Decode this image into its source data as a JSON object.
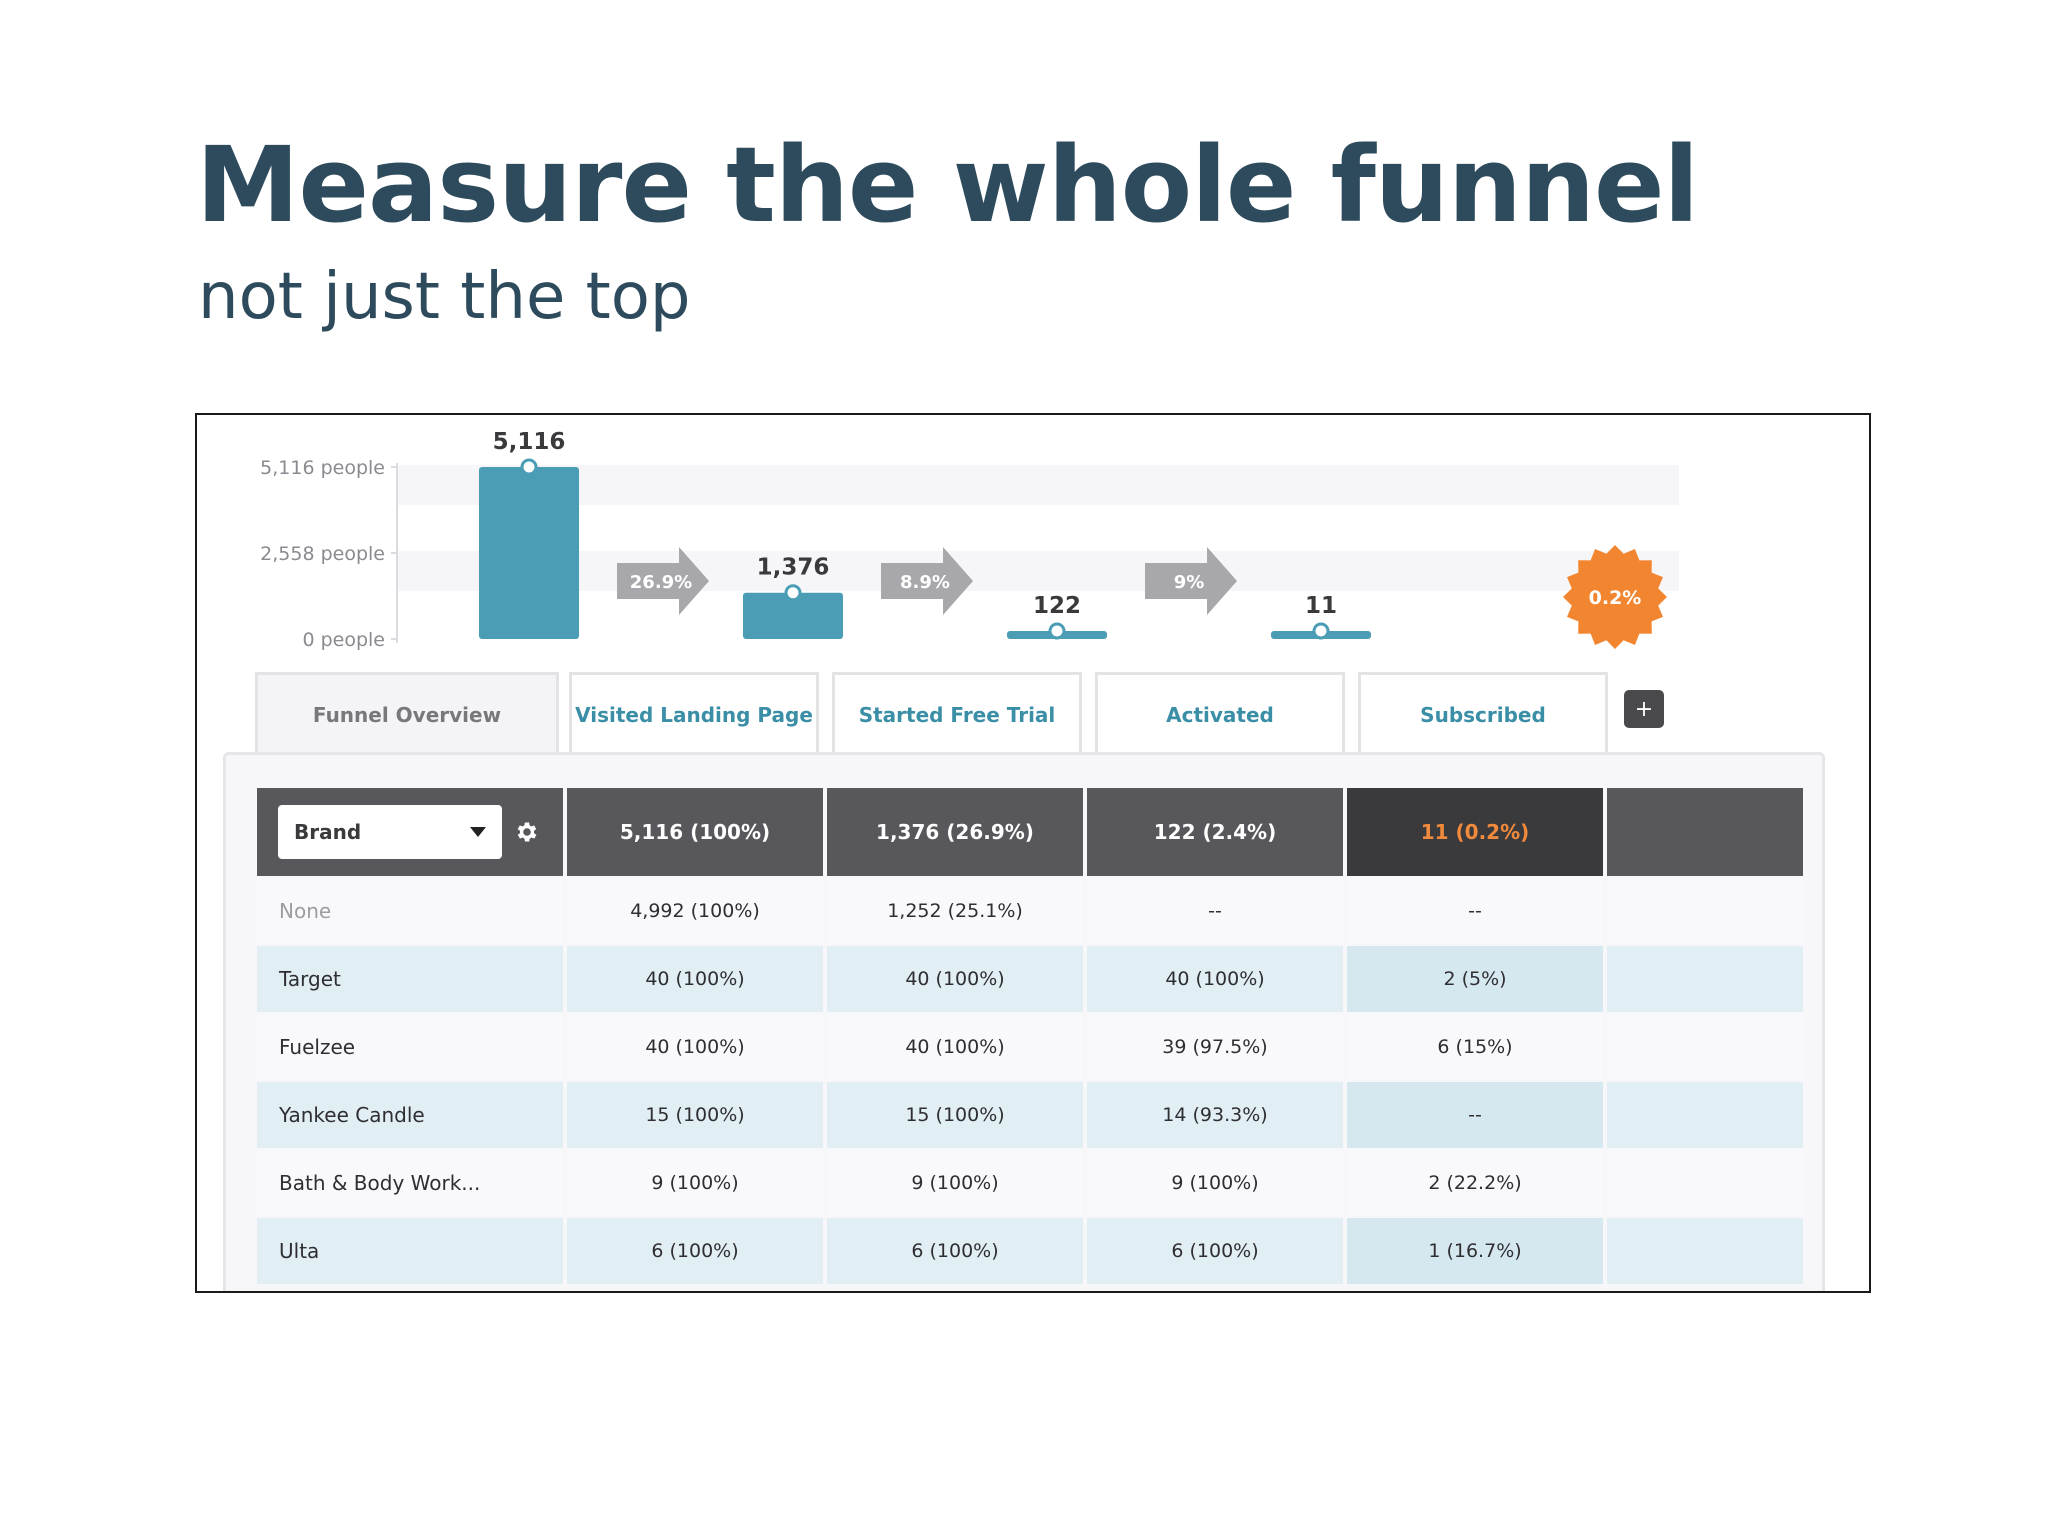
{
  "title": "Measure the whole funnel",
  "subtitle": "not just the top",
  "colors": {
    "title": "#2d4b5c",
    "bar": "#4a9db5",
    "arrow": "#a8a8ac",
    "badge": "#f2852f",
    "header": "#58585c",
    "header_dark": "#3a3a3d",
    "header_dark_text": "#f28a3c",
    "row_tint": "#e1eef3"
  },
  "chart_data": {
    "type": "bar",
    "categories": [
      "Visited Landing Page",
      "Started Free Trial",
      "Activated",
      "Subscribed"
    ],
    "values": [
      5116,
      1376,
      122,
      11
    ],
    "value_labels": [
      "5,116",
      "1,376",
      "122",
      "11"
    ],
    "y_ticks": [
      {
        "value": 5116,
        "label": "5,116 people"
      },
      {
        "value": 2558,
        "label": "2,558 people"
      },
      {
        "value": 0,
        "label": "0 people"
      }
    ],
    "ylim": [
      0,
      5116
    ],
    "step_conversions": [
      "26.9%",
      "8.9%",
      "9%"
    ],
    "overall_conversion": "0.2%",
    "grid": true
  },
  "tabs": [
    "Funnel Overview",
    "Visited Landing Page",
    "Started Free Trial",
    "Activated",
    "Subscribed"
  ],
  "add_step_label": "+",
  "table": {
    "group_by": {
      "selected": "Brand",
      "settings_icon": "gear-icon"
    },
    "header": [
      "5,116 (100%)",
      "1,376 (26.9%)",
      "122 (2.4%)",
      "11 (0.2%)",
      ""
    ],
    "rows": [
      {
        "label": "None",
        "values": [
          "4,992 (100%)",
          "1,252 (25.1%)",
          "--",
          "--",
          ""
        ]
      },
      {
        "label": "Target",
        "values": [
          "40 (100%)",
          "40 (100%)",
          "40 (100%)",
          "2 (5%)",
          ""
        ]
      },
      {
        "label": "Fuelzee",
        "values": [
          "40 (100%)",
          "40 (100%)",
          "39 (97.5%)",
          "6 (15%)",
          ""
        ]
      },
      {
        "label": "Yankee Candle",
        "values": [
          "15 (100%)",
          "15 (100%)",
          "14 (93.3%)",
          "--",
          ""
        ]
      },
      {
        "label": "Bath & Body Work...",
        "values": [
          "9 (100%)",
          "9 (100%)",
          "9 (100%)",
          "2 (22.2%)",
          ""
        ]
      },
      {
        "label": "Ulta",
        "values": [
          "6 (100%)",
          "6 (100%)",
          "6 (100%)",
          "1 (16.7%)",
          ""
        ]
      }
    ]
  }
}
